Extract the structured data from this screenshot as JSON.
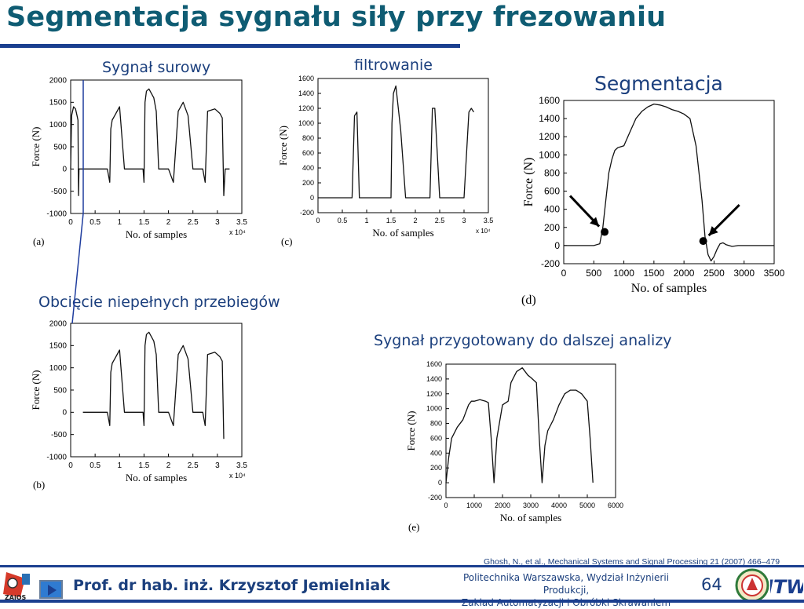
{
  "title": "Segmentacja sygnału siły przy frezowaniu",
  "labels": {
    "raw": "Sygnał surowy",
    "filter": "filtrowanie",
    "segment": "Segmentacja",
    "cut": "Obcięcie niepełnych przebiegów",
    "prepared": "Sygnał przygotowany do dalszej analizy"
  },
  "chart_data": [
    {
      "id": "a",
      "type": "line",
      "panel_label": "(a)",
      "xlabel": "No. of samples",
      "ylabel": "Force (N)",
      "x_multiplier": "x 10⁴",
      "xlim": [
        0,
        3.5
      ],
      "ylim": [
        -1000,
        2000
      ],
      "xticks": [
        0,
        0.5,
        1,
        1.5,
        2,
        2.5,
        3,
        3.5
      ],
      "yticks": [
        -1000,
        -500,
        0,
        500,
        1000,
        1500,
        2000
      ],
      "x": [
        0,
        0.02,
        0.06,
        0.1,
        0.13,
        0.15,
        0.16,
        0.17,
        0.2,
        0.25,
        0.4,
        0.5,
        0.65,
        0.75,
        0.8,
        0.82,
        0.85,
        0.9,
        1.0,
        1.1,
        1.2,
        1.3,
        1.4,
        1.48,
        1.5,
        1.52,
        1.55,
        1.6,
        1.7,
        1.75,
        1.8,
        1.9,
        2.0,
        2.1,
        2.2,
        2.3,
        2.35,
        2.4,
        2.5,
        2.6,
        2.7,
        2.75,
        2.8,
        2.95,
        3.05,
        3.1,
        3.13,
        3.16,
        3.2,
        3.25
      ],
      "y": [
        0,
        1200,
        1400,
        1350,
        1200,
        1100,
        -600,
        0,
        0,
        0,
        0,
        0,
        0,
        0,
        -300,
        900,
        1100,
        1200,
        1400,
        0,
        0,
        0,
        0,
        0,
        -300,
        1500,
        1750,
        1800,
        1600,
        1300,
        0,
        0,
        0,
        -300,
        1300,
        1500,
        1350,
        1200,
        0,
        0,
        0,
        -300,
        1300,
        1350,
        1250,
        1150,
        -600,
        0,
        0,
        0
      ],
      "cut_marker_x": 0.25
    },
    {
      "id": "c",
      "type": "line",
      "panel_label": "(c)",
      "xlabel": "No. of samples",
      "ylabel": "Force (N)",
      "x_multiplier": "x 10⁴",
      "xlim": [
        0,
        3.5
      ],
      "ylim": [
        -200,
        1600
      ],
      "xticks": [
        0,
        0.5,
        1,
        1.5,
        2,
        2.5,
        3,
        3.5
      ],
      "yticks": [
        -200,
        0,
        200,
        400,
        600,
        800,
        1000,
        1200,
        1400,
        1600
      ],
      "x": [
        0,
        0.2,
        0.4,
        0.6,
        0.7,
        0.75,
        0.8,
        0.85,
        0.9,
        1.0,
        1.2,
        1.4,
        1.5,
        1.52,
        1.55,
        1.6,
        1.7,
        1.8,
        1.9,
        2.0,
        2.1,
        2.2,
        2.3,
        2.35,
        2.4,
        2.5,
        2.7,
        2.8,
        2.9,
        3.0,
        3.1,
        3.15,
        3.2
      ],
      "y": [
        0,
        0,
        0,
        0,
        0,
        1100,
        1150,
        0,
        0,
        0,
        0,
        0,
        0,
        1000,
        1400,
        1500,
        900,
        0,
        0,
        0,
        0,
        0,
        0,
        1200,
        1200,
        0,
        0,
        0,
        0,
        0,
        1150,
        1200,
        1150
      ]
    },
    {
      "id": "d",
      "type": "line",
      "panel_label": "(d)",
      "xlabel": "No. of samples",
      "ylabel": "Force (N)",
      "xlim": [
        0,
        3500
      ],
      "ylim": [
        -200,
        1600
      ],
      "xticks": [
        0,
        500,
        1000,
        1500,
        2000,
        2500,
        3000,
        3500
      ],
      "yticks": [
        -200,
        0,
        200,
        400,
        600,
        800,
        1000,
        1200,
        1400,
        1600
      ],
      "x": [
        0,
        200,
        500,
        600,
        650,
        700,
        750,
        800,
        850,
        900,
        1000,
        1100,
        1200,
        1300,
        1400,
        1500,
        1600,
        1700,
        1800,
        1900,
        2000,
        2100,
        2200,
        2300,
        2350,
        2400,
        2450,
        2500,
        2550,
        2600,
        2650,
        2700,
        2800,
        2900,
        3000,
        3100,
        3200,
        3300,
        3400,
        3500
      ],
      "y": [
        0,
        0,
        0,
        20,
        200,
        500,
        800,
        950,
        1050,
        1080,
        1100,
        1250,
        1400,
        1480,
        1530,
        1560,
        1550,
        1530,
        1500,
        1480,
        1450,
        1400,
        1100,
        500,
        100,
        -100,
        -170,
        -120,
        -40,
        20,
        30,
        10,
        -10,
        0,
        0,
        0,
        0,
        0,
        0,
        0
      ],
      "markers": [
        {
          "x": 680,
          "y": 150
        },
        {
          "x": 2320,
          "y": 50
        }
      ]
    },
    {
      "id": "b",
      "type": "line",
      "panel_label": "(b)",
      "xlabel": "No. of samples",
      "ylabel": "Force (N)",
      "x_multiplier": "x 10⁴",
      "xlim": [
        0,
        3.5
      ],
      "ylim": [
        -1000,
        2000
      ],
      "xticks": [
        0,
        0.5,
        1,
        1.5,
        2,
        2.5,
        3,
        3.5
      ],
      "yticks": [
        -1000,
        -500,
        0,
        500,
        1000,
        1500,
        2000
      ],
      "x": [
        0.25,
        0.4,
        0.5,
        0.65,
        0.75,
        0.8,
        0.82,
        0.85,
        0.9,
        1.0,
        1.1,
        1.2,
        1.3,
        1.4,
        1.48,
        1.5,
        1.52,
        1.55,
        1.6,
        1.7,
        1.75,
        1.8,
        1.9,
        2.0,
        2.1,
        2.2,
        2.3,
        2.35,
        2.4,
        2.5,
        2.6,
        2.7,
        2.75,
        2.8,
        2.95,
        3.05,
        3.1,
        3.13
      ],
      "y": [
        0,
        0,
        0,
        0,
        0,
        -300,
        900,
        1100,
        1200,
        1400,
        0,
        0,
        0,
        0,
        0,
        -300,
        1500,
        1750,
        1800,
        1600,
        1300,
        0,
        0,
        0,
        -300,
        1300,
        1500,
        1350,
        1200,
        0,
        0,
        0,
        -300,
        1300,
        1350,
        1250,
        1150,
        -600
      ]
    },
    {
      "id": "e",
      "type": "line",
      "panel_label": "(e)",
      "xlabel": "No. of samples",
      "ylabel": "Force (N)",
      "xlim": [
        0,
        6000
      ],
      "ylim": [
        -200,
        1600
      ],
      "xticks": [
        0,
        1000,
        2000,
        3000,
        4000,
        5000,
        6000
      ],
      "yticks": [
        -200,
        0,
        200,
        400,
        600,
        800,
        1000,
        1200,
        1400,
        1600
      ],
      "x": [
        0,
        100,
        200,
        400,
        600,
        800,
        900,
        1000,
        1200,
        1400,
        1500,
        1600,
        1700,
        1800,
        2000,
        2200,
        2300,
        2500,
        2700,
        2900,
        3000,
        3200,
        3300,
        3400,
        3500,
        3600,
        3800,
        4000,
        4200,
        4400,
        4600,
        4800,
        5000,
        5100,
        5200
      ],
      "y": [
        0,
        350,
        600,
        750,
        850,
        1050,
        1100,
        1100,
        1120,
        1100,
        1080,
        600,
        0,
        600,
        1050,
        1100,
        1350,
        1500,
        1550,
        1450,
        1420,
        1350,
        600,
        0,
        500,
        700,
        850,
        1050,
        1200,
        1250,
        1250,
        1200,
        1100,
        600,
        0
      ]
    }
  ],
  "citation": "Ghosh, N., et al., Mechanical Systems and Signal Processing 21 (2007) 466–479",
  "footer": {
    "author": "Prof. dr hab. inż. Krzysztof Jemielniak",
    "institution_line1": "Politechnika Warszawska, Wydział Inżynierii Produkcji,",
    "institution_line2": "Zakład Automatyzacji i Obróbki Skrawaniem",
    "page_number": "64",
    "logo_left_text": "ZAiOS",
    "logo_right_text": "ITW",
    "nav_icon": "play-triangle-icon"
  }
}
